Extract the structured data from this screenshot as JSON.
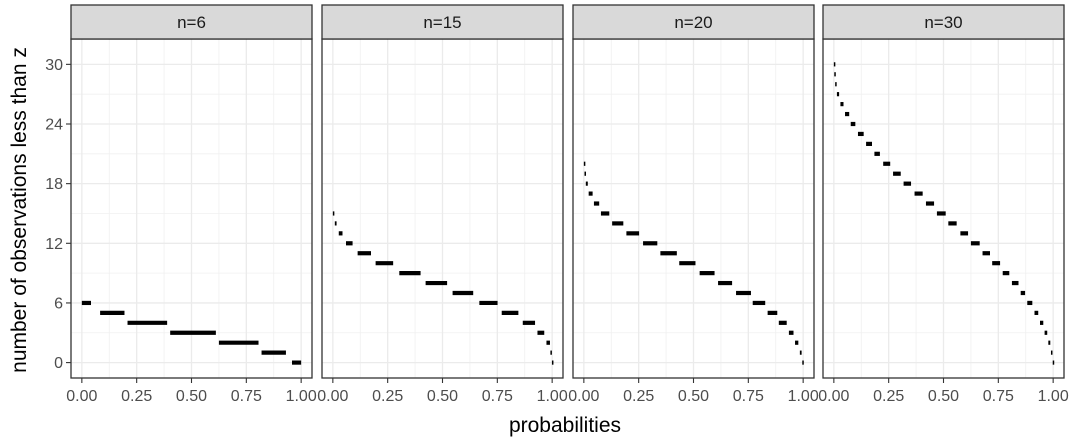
{
  "chart_data": {
    "type": "faceted-step",
    "xlabel": "probabilities",
    "ylabel": "number of observations less than z",
    "xlim": [
      0,
      1
    ],
    "ylim": [
      0,
      31
    ],
    "x_ticks": [
      0.0,
      0.25,
      0.5,
      0.75,
      1.0
    ],
    "x_tick_labels": [
      "0.00",
      "0.25",
      "0.50",
      "0.75",
      "1.00"
    ],
    "y_ticks": [
      0,
      6,
      12,
      18,
      24,
      30
    ],
    "y_tick_labels": [
      "0",
      "6",
      "12",
      "18",
      "24",
      "30"
    ],
    "grid": true,
    "line_color": "#000000",
    "strip_fill": "#d9d9d9",
    "panels": [
      {
        "label": "n=6",
        "n": 6,
        "segments": [
          {
            "y": 6,
            "x": [
              0.0,
              0.0417
            ]
          },
          {
            "y": 5,
            "x": [
              0.0833,
              0.1944
            ]
          },
          {
            "y": 4,
            "x": [
              0.2083,
              0.3889
            ]
          },
          {
            "y": 3,
            "x": [
              0.4028,
              0.6111
            ]
          },
          {
            "y": 2,
            "x": [
              0.625,
              0.8056
            ]
          },
          {
            "y": 1,
            "x": [
              0.8194,
              0.9306
            ]
          },
          {
            "y": 0,
            "x": [
              0.9583,
              1.0
            ]
          }
        ]
      },
      {
        "label": "n=15",
        "n": 15,
        "segments": [
          {
            "y": 15,
            "x": [
              0.0,
              0.005
            ]
          },
          {
            "y": 14,
            "x": [
              0.009,
              0.017
            ]
          },
          {
            "y": 13,
            "x": [
              0.027,
              0.044
            ]
          },
          {
            "y": 12,
            "x": [
              0.06,
              0.09
            ]
          },
          {
            "y": 11,
            "x": [
              0.113,
              0.174
            ]
          },
          {
            "y": 10,
            "x": [
              0.195,
              0.275
            ]
          },
          {
            "y": 9,
            "x": [
              0.303,
              0.4
            ]
          },
          {
            "y": 8,
            "x": [
              0.423,
              0.521
            ]
          },
          {
            "y": 7,
            "x": [
              0.546,
              0.64
            ]
          },
          {
            "y": 6,
            "x": [
              0.668,
              0.751
            ]
          },
          {
            "y": 5,
            "x": [
              0.77,
              0.846
            ]
          },
          {
            "y": 4,
            "x": [
              0.866,
              0.922
            ]
          },
          {
            "y": 3,
            "x": [
              0.933,
              0.964
            ]
          },
          {
            "y": 2,
            "x": [
              0.974,
              0.99
            ]
          },
          {
            "y": 1,
            "x": [
              0.992,
              0.998
            ]
          },
          {
            "y": 0,
            "x": [
              0.999,
              1.0
            ]
          }
        ]
      },
      {
        "label": "n=20",
        "n": 20,
        "segments": [
          {
            "y": 20,
            "x": [
              0.0,
              0.002
            ]
          },
          {
            "y": 19,
            "x": [
              0.003,
              0.007
            ]
          },
          {
            "y": 18,
            "x": [
              0.009,
              0.018
            ]
          },
          {
            "y": 17,
            "x": [
              0.022,
              0.04
            ]
          },
          {
            "y": 16,
            "x": [
              0.046,
              0.07
            ]
          },
          {
            "y": 15,
            "x": [
              0.078,
              0.116
            ]
          },
          {
            "y": 14,
            "x": [
              0.129,
              0.18
            ]
          },
          {
            "y": 13,
            "x": [
              0.194,
              0.252
            ]
          },
          {
            "y": 12,
            "x": [
              0.27,
              0.335
            ]
          },
          {
            "y": 11,
            "x": [
              0.349,
              0.424
            ]
          },
          {
            "y": 10,
            "x": [
              0.435,
              0.509
            ]
          },
          {
            "y": 9,
            "x": [
              0.528,
              0.596
            ]
          },
          {
            "y": 8,
            "x": [
              0.612,
              0.676
            ]
          },
          {
            "y": 7,
            "x": [
              0.694,
              0.762
            ]
          },
          {
            "y": 6,
            "x": [
              0.77,
              0.827
            ]
          },
          {
            "y": 5,
            "x": [
              0.838,
              0.882
            ]
          },
          {
            "y": 4,
            "x": [
              0.889,
              0.925
            ]
          },
          {
            "y": 3,
            "x": [
              0.935,
              0.956
            ]
          },
          {
            "y": 2,
            "x": [
              0.963,
              0.978
            ]
          },
          {
            "y": 1,
            "x": [
              0.985,
              0.993
            ]
          },
          {
            "y": 0,
            "x": [
              0.996,
              1.0
            ]
          }
        ]
      },
      {
        "label": "n=30",
        "n": 30,
        "segments": [
          {
            "y": 30,
            "x": [
              0.0,
              0.001
            ]
          },
          {
            "y": 29,
            "x": [
              0.002,
              0.005
            ]
          },
          {
            "y": 28,
            "x": [
              0.006,
              0.01
            ]
          },
          {
            "y": 27,
            "x": [
              0.014,
              0.024
            ]
          },
          {
            "y": 26,
            "x": [
              0.03,
              0.044
            ]
          },
          {
            "y": 25,
            "x": [
              0.051,
              0.07
            ]
          },
          {
            "y": 24,
            "x": [
              0.077,
              0.098
            ]
          },
          {
            "y": 23,
            "x": [
              0.11,
              0.136
            ]
          },
          {
            "y": 22,
            "x": [
              0.147,
              0.174
            ]
          },
          {
            "y": 21,
            "x": [
              0.185,
              0.21
            ]
          },
          {
            "y": 20,
            "x": [
              0.225,
              0.257
            ]
          },
          {
            "y": 19,
            "x": [
              0.27,
              0.305
            ]
          },
          {
            "y": 18,
            "x": [
              0.318,
              0.352
            ]
          },
          {
            "y": 17,
            "x": [
              0.368,
              0.405
            ]
          },
          {
            "y": 16,
            "x": [
              0.42,
              0.457
            ]
          },
          {
            "y": 15,
            "x": [
              0.47,
              0.51
            ]
          },
          {
            "y": 14,
            "x": [
              0.522,
              0.56
            ]
          },
          {
            "y": 13,
            "x": [
              0.577,
              0.612
            ]
          },
          {
            "y": 12,
            "x": [
              0.625,
              0.665
            ]
          },
          {
            "y": 11,
            "x": [
              0.678,
              0.712
            ]
          },
          {
            "y": 10,
            "x": [
              0.722,
              0.758
            ]
          },
          {
            "y": 9,
            "x": [
              0.77,
              0.8
            ]
          },
          {
            "y": 8,
            "x": [
              0.812,
              0.842
            ]
          },
          {
            "y": 7,
            "x": [
              0.852,
              0.872
            ]
          },
          {
            "y": 6,
            "x": [
              0.882,
              0.905
            ]
          },
          {
            "y": 5,
            "x": [
              0.915,
              0.932
            ]
          },
          {
            "y": 4,
            "x": [
              0.94,
              0.955
            ]
          },
          {
            "y": 3,
            "x": [
              0.961,
              0.973
            ]
          },
          {
            "y": 2,
            "x": [
              0.978,
              0.987
            ]
          },
          {
            "y": 1,
            "x": [
              0.99,
              0.996
            ]
          },
          {
            "y": 0,
            "x": [
              0.998,
              1.0
            ]
          }
        ]
      }
    ]
  }
}
